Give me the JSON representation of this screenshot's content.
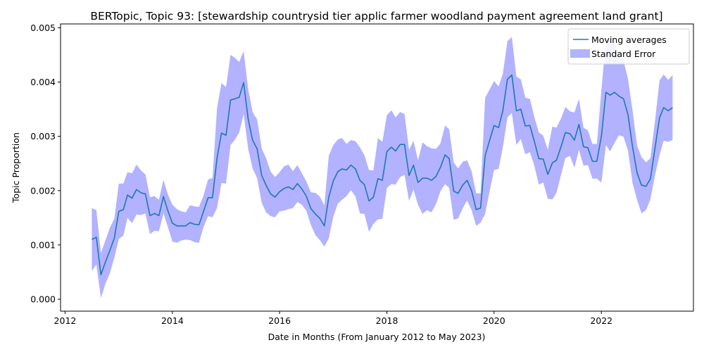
{
  "chart_data": {
    "type": "line",
    "title": "BERTopic, Topic 93: [stewardship countrysid tier applic farmer woodland payment agreement land grant]",
    "xlabel": "Date in Months (From January 2012 to May 2023)",
    "ylabel": "Topic Proportion",
    "xlim": [
      "2011-12-01",
      "2023-09-20"
    ],
    "ylim": [
      -0.00022,
      0.00507
    ],
    "xticks": [
      {
        "label": "2012",
        "date": "2012-01-01"
      },
      {
        "label": "2014",
        "date": "2014-01-01"
      },
      {
        "label": "2016",
        "date": "2016-01-01"
      },
      {
        "label": "2018",
        "date": "2018-01-01"
      },
      {
        "label": "2020",
        "date": "2020-01-01"
      },
      {
        "label": "2022",
        "date": "2022-01-01"
      }
    ],
    "yticks": [
      {
        "label": "0.000",
        "value": 0.0
      },
      {
        "label": "0.001",
        "value": 0.001
      },
      {
        "label": "0.002",
        "value": 0.002
      },
      {
        "label": "0.003",
        "value": 0.003
      },
      {
        "label": "0.004",
        "value": 0.004
      },
      {
        "label": "0.005",
        "value": 0.005
      }
    ],
    "legend_position": "top-right",
    "grid": false,
    "colors": {
      "line": "#1f77b4",
      "band": "#0000ff",
      "band_opacity": 0.3
    },
    "series": [
      {
        "name": "Moving averages",
        "kind": "line",
        "x": [
          "2012-07",
          "2012-08",
          "2012-09",
          "2012-10",
          "2012-11",
          "2012-12",
          "2013-01",
          "2013-02",
          "2013-03",
          "2013-04",
          "2013-05",
          "2013-06",
          "2013-07",
          "2013-08",
          "2013-09",
          "2013-10",
          "2013-11",
          "2013-12",
          "2014-01",
          "2014-02",
          "2014-03",
          "2014-04",
          "2014-05",
          "2014-06",
          "2014-07",
          "2014-08",
          "2014-09",
          "2014-10",
          "2014-11",
          "2014-12",
          "2015-01",
          "2015-02",
          "2015-03",
          "2015-04",
          "2015-05",
          "2015-06",
          "2015-07",
          "2015-08",
          "2015-09",
          "2015-10",
          "2015-11",
          "2015-12",
          "2016-01",
          "2016-02",
          "2016-03",
          "2016-04",
          "2016-05",
          "2016-06",
          "2016-07",
          "2016-08",
          "2016-09",
          "2016-10",
          "2016-11",
          "2016-12",
          "2017-01",
          "2017-02",
          "2017-03",
          "2017-04",
          "2017-05",
          "2017-06",
          "2017-07",
          "2017-08",
          "2017-09",
          "2017-10",
          "2017-11",
          "2017-12",
          "2018-01",
          "2018-02",
          "2018-03",
          "2018-04",
          "2018-05",
          "2018-06",
          "2018-07",
          "2018-08",
          "2018-09",
          "2018-10",
          "2018-11",
          "2018-12",
          "2019-01",
          "2019-02",
          "2019-03",
          "2019-04",
          "2019-05",
          "2019-06",
          "2019-07",
          "2019-08",
          "2019-09",
          "2019-10",
          "2019-11",
          "2019-12",
          "2020-01",
          "2020-02",
          "2020-03",
          "2020-04",
          "2020-05",
          "2020-06",
          "2020-07",
          "2020-08",
          "2020-09",
          "2020-10",
          "2020-11",
          "2020-12",
          "2021-01",
          "2021-02",
          "2021-03",
          "2021-04",
          "2021-05",
          "2021-06",
          "2021-07",
          "2021-08",
          "2021-09",
          "2021-10",
          "2021-11",
          "2021-12",
          "2022-01",
          "2022-02",
          "2022-03",
          "2022-04",
          "2022-05",
          "2022-06",
          "2022-07",
          "2022-08",
          "2022-09",
          "2022-10",
          "2022-11",
          "2022-12",
          "2023-01",
          "2023-02",
          "2023-03",
          "2023-04",
          "2023-05"
        ],
        "y": [
          0.0011,
          0.00114,
          0.00045,
          0.00068,
          0.0009,
          0.00112,
          0.00162,
          0.00165,
          0.00192,
          0.00186,
          0.00202,
          0.00196,
          0.00194,
          0.00154,
          0.00158,
          0.00154,
          0.00189,
          0.00163,
          0.0014,
          0.00135,
          0.00135,
          0.00135,
          0.00141,
          0.00138,
          0.00137,
          0.00162,
          0.00187,
          0.00187,
          0.0026,
          0.00306,
          0.00302,
          0.00367,
          0.00369,
          0.00372,
          0.00399,
          0.00332,
          0.00293,
          0.00277,
          0.00228,
          0.0021,
          0.00194,
          0.00188,
          0.00198,
          0.00204,
          0.00207,
          0.00202,
          0.00213,
          0.00203,
          0.0019,
          0.00167,
          0.00157,
          0.00149,
          0.00135,
          0.00188,
          0.00218,
          0.00235,
          0.0024,
          0.00238,
          0.00247,
          0.0024,
          0.00219,
          0.00211,
          0.00181,
          0.00188,
          0.00222,
          0.00219,
          0.00272,
          0.0028,
          0.00273,
          0.00285,
          0.00285,
          0.00228,
          0.00247,
          0.00215,
          0.00223,
          0.00223,
          0.00219,
          0.00226,
          0.00243,
          0.00266,
          0.00259,
          0.00199,
          0.00195,
          0.0021,
          0.00219,
          0.002,
          0.00165,
          0.00168,
          0.00264,
          0.00292,
          0.0032,
          0.00316,
          0.00348,
          0.00405,
          0.00413,
          0.00347,
          0.0035,
          0.00319,
          0.0032,
          0.00291,
          0.00259,
          0.00258,
          0.0023,
          0.00251,
          0.00256,
          0.00281,
          0.00307,
          0.00305,
          0.00293,
          0.00322,
          0.00281,
          0.00279,
          0.00254,
          0.00254,
          0.003,
          0.00381,
          0.00376,
          0.00381,
          0.00374,
          0.00369,
          0.0034,
          0.00281,
          0.00233,
          0.0021,
          0.00208,
          0.00222,
          0.00278,
          0.00334,
          0.00353,
          0.00347,
          0.00353
        ]
      },
      {
        "name": "Standard Error",
        "kind": "band",
        "x": [
          "2012-07",
          "2012-08",
          "2012-09",
          "2012-10",
          "2012-11",
          "2012-12",
          "2013-01",
          "2013-02",
          "2013-03",
          "2013-04",
          "2013-05",
          "2013-06",
          "2013-07",
          "2013-08",
          "2013-09",
          "2013-10",
          "2013-11",
          "2013-12",
          "2014-01",
          "2014-02",
          "2014-03",
          "2014-04",
          "2014-05",
          "2014-06",
          "2014-07",
          "2014-08",
          "2014-09",
          "2014-10",
          "2014-11",
          "2014-12",
          "2015-01",
          "2015-02",
          "2015-03",
          "2015-04",
          "2015-05",
          "2015-06",
          "2015-07",
          "2015-08",
          "2015-09",
          "2015-10",
          "2015-11",
          "2015-12",
          "2016-01",
          "2016-02",
          "2016-03",
          "2016-04",
          "2016-05",
          "2016-06",
          "2016-07",
          "2016-08",
          "2016-09",
          "2016-10",
          "2016-11",
          "2016-12",
          "2017-01",
          "2017-02",
          "2017-03",
          "2017-04",
          "2017-05",
          "2017-06",
          "2017-07",
          "2017-08",
          "2017-09",
          "2017-10",
          "2017-11",
          "2017-12",
          "2018-01",
          "2018-02",
          "2018-03",
          "2018-04",
          "2018-05",
          "2018-06",
          "2018-07",
          "2018-08",
          "2018-09",
          "2018-10",
          "2018-11",
          "2018-12",
          "2019-01",
          "2019-02",
          "2019-03",
          "2019-04",
          "2019-05",
          "2019-06",
          "2019-07",
          "2019-08",
          "2019-09",
          "2019-10",
          "2019-11",
          "2019-12",
          "2020-01",
          "2020-02",
          "2020-03",
          "2020-04",
          "2020-05",
          "2020-06",
          "2020-07",
          "2020-08",
          "2020-09",
          "2020-10",
          "2020-11",
          "2020-12",
          "2021-01",
          "2021-02",
          "2021-03",
          "2021-04",
          "2021-05",
          "2021-06",
          "2021-07",
          "2021-08",
          "2021-09",
          "2021-10",
          "2021-11",
          "2021-12",
          "2022-01",
          "2022-02",
          "2022-03",
          "2022-04",
          "2022-05",
          "2022-06",
          "2022-07",
          "2022-08",
          "2022-09",
          "2022-10",
          "2022-11",
          "2022-12",
          "2023-01",
          "2023-02",
          "2023-03",
          "2023-04",
          "2023-05"
        ],
        "upper": [
          0.00168,
          0.00164,
          0.00085,
          0.00108,
          0.00132,
          0.00148,
          0.00213,
          0.00213,
          0.00234,
          0.00232,
          0.00248,
          0.00237,
          0.0023,
          0.00188,
          0.0019,
          0.00183,
          0.0022,
          0.00193,
          0.00174,
          0.00166,
          0.00162,
          0.0016,
          0.00173,
          0.00171,
          0.0017,
          0.00191,
          0.00221,
          0.00223,
          0.00352,
          0.00398,
          0.00391,
          0.0045,
          0.00445,
          0.00437,
          0.00457,
          0.00387,
          0.00345,
          0.00331,
          0.00278,
          0.0026,
          0.00235,
          0.00225,
          0.00234,
          0.00245,
          0.00248,
          0.00236,
          0.00247,
          0.00232,
          0.00217,
          0.00197,
          0.00196,
          0.00189,
          0.00173,
          0.00264,
          0.00284,
          0.00294,
          0.00297,
          0.00286,
          0.00293,
          0.00291,
          0.0028,
          0.00265,
          0.00238,
          0.00237,
          0.00297,
          0.0029,
          0.00339,
          0.00348,
          0.00335,
          0.00345,
          0.00341,
          0.00275,
          0.00292,
          0.00256,
          0.00289,
          0.00282,
          0.00278,
          0.00277,
          0.00287,
          0.0032,
          0.00313,
          0.00252,
          0.00241,
          0.00253,
          0.00256,
          0.00236,
          0.00195,
          0.00195,
          0.00371,
          0.00386,
          0.00402,
          0.00392,
          0.00416,
          0.00475,
          0.00483,
          0.0041,
          0.00405,
          0.00371,
          0.00369,
          0.00336,
          0.00307,
          0.00301,
          0.00275,
          0.00318,
          0.00316,
          0.00333,
          0.00354,
          0.00346,
          0.00344,
          0.00369,
          0.00316,
          0.00311,
          0.00286,
          0.00286,
          0.00385,
          0.00478,
          0.0048,
          0.00474,
          0.00446,
          0.00439,
          0.00406,
          0.00348,
          0.00283,
          0.00262,
          0.00252,
          0.0026,
          0.00328,
          0.00403,
          0.00414,
          0.00404,
          0.00413
        ],
        "lower": [
          0.00052,
          0.00064,
          2e-05,
          0.00028,
          0.00048,
          0.00076,
          0.00111,
          0.00117,
          0.0015,
          0.0014,
          0.00156,
          0.00155,
          0.00158,
          0.0012,
          0.00126,
          0.00125,
          0.00158,
          0.00133,
          0.00106,
          0.00104,
          0.00108,
          0.0011,
          0.00109,
          0.00105,
          0.00104,
          0.00133,
          0.00153,
          0.00151,
          0.00168,
          0.00214,
          0.00213,
          0.00284,
          0.00293,
          0.00307,
          0.00341,
          0.00277,
          0.00241,
          0.00223,
          0.00178,
          0.0016,
          0.00153,
          0.00151,
          0.00162,
          0.00163,
          0.00166,
          0.00168,
          0.00179,
          0.00174,
          0.00163,
          0.00137,
          0.00118,
          0.00109,
          0.00097,
          0.00112,
          0.00152,
          0.00176,
          0.00183,
          0.0019,
          0.00201,
          0.00189,
          0.00158,
          0.00157,
          0.00124,
          0.00139,
          0.00147,
          0.00148,
          0.00205,
          0.00212,
          0.00211,
          0.00225,
          0.00229,
          0.00181,
          0.00202,
          0.00174,
          0.00157,
          0.00164,
          0.0016,
          0.00175,
          0.00199,
          0.00212,
          0.00205,
          0.00146,
          0.00149,
          0.00167,
          0.00182,
          0.00164,
          0.00135,
          0.00141,
          0.00157,
          0.00198,
          0.00238,
          0.0024,
          0.0028,
          0.00335,
          0.00343,
          0.00284,
          0.00295,
          0.00267,
          0.00271,
          0.00246,
          0.00211,
          0.00215,
          0.00185,
          0.00184,
          0.00196,
          0.00229,
          0.0026,
          0.00264,
          0.00242,
          0.00275,
          0.00246,
          0.00247,
          0.00222,
          0.00222,
          0.00215,
          0.00284,
          0.00272,
          0.00288,
          0.00302,
          0.00299,
          0.00274,
          0.00214,
          0.00183,
          0.00158,
          0.00164,
          0.00184,
          0.00228,
          0.00265,
          0.00292,
          0.0029,
          0.00293
        ]
      }
    ]
  }
}
